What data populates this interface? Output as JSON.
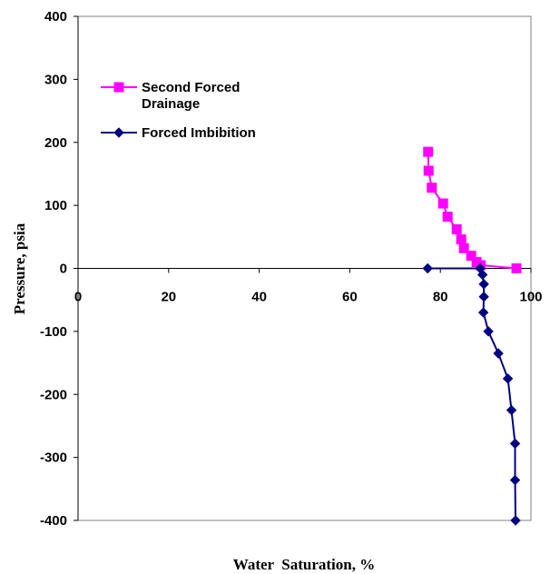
{
  "chart_data": {
    "type": "line",
    "title": "",
    "xlabel": "Water  Saturation, %",
    "ylabel": "Pressure, psia",
    "xlim": [
      0,
      100
    ],
    "ylim": [
      -400,
      400
    ],
    "xticks": [
      0,
      20,
      40,
      60,
      80,
      100
    ],
    "yticks": [
      400,
      300,
      200,
      100,
      0,
      -100,
      -200,
      -300,
      -400
    ],
    "grid": false,
    "legend_position": "top-left",
    "series": [
      {
        "name": "Second Forced Drainage",
        "color": "#ff00ff",
        "marker": "square",
        "legend_lines": [
          "Second Forced",
          "Drainage"
        ],
        "points": [
          [
            96.8,
            0
          ],
          [
            88.9,
            5
          ],
          [
            88.0,
            10
          ],
          [
            86.8,
            20
          ],
          [
            85.2,
            32
          ],
          [
            84.6,
            46
          ],
          [
            83.6,
            62
          ],
          [
            81.6,
            82
          ],
          [
            80.6,
            103
          ],
          [
            78.1,
            128
          ],
          [
            77.4,
            155
          ],
          [
            77.3,
            185
          ]
        ]
      },
      {
        "name": "Forced Imbibition",
        "color": "#000080",
        "marker": "diamond",
        "legend_lines": [
          "Forced Imbibition"
        ],
        "points": [
          [
            77.2,
            0
          ],
          [
            88.8,
            0
          ],
          [
            89.3,
            -10
          ],
          [
            89.6,
            -25
          ],
          [
            89.6,
            -45
          ],
          [
            89.5,
            -70
          ],
          [
            90.6,
            -100
          ],
          [
            92.8,
            -135
          ],
          [
            94.9,
            -175
          ],
          [
            95.7,
            -225
          ],
          [
            96.5,
            -278
          ],
          [
            96.5,
            -336
          ],
          [
            96.6,
            -400
          ]
        ]
      }
    ]
  }
}
